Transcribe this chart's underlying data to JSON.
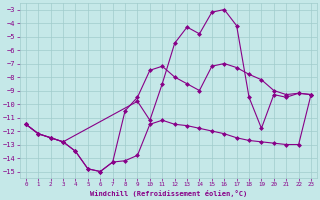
{
  "xlabel": "Windchill (Refroidissement éolien,°C)",
  "bg_color": "#c5e8e8",
  "grid_color": "#a0cccc",
  "line_color": "#880088",
  "xlim": [
    -0.5,
    23.5
  ],
  "ylim": [
    -15.5,
    -2.5
  ],
  "xticks": [
    0,
    1,
    2,
    3,
    4,
    5,
    6,
    7,
    8,
    9,
    10,
    11,
    12,
    13,
    14,
    15,
    16,
    17,
    18,
    19,
    20,
    21,
    22,
    23
  ],
  "yticks": [
    -3,
    -4,
    -5,
    -6,
    -7,
    -8,
    -9,
    -10,
    -11,
    -12,
    -13,
    -14,
    -15
  ],
  "line1_x": [
    0,
    1,
    2,
    3,
    4,
    5,
    6,
    7,
    8,
    9,
    10,
    11,
    12,
    13,
    14,
    15,
    16,
    17,
    18,
    19,
    20,
    21,
    22,
    23
  ],
  "line1_y": [
    -11.5,
    -12.2,
    -12.5,
    -12.8,
    -13.5,
    -14.8,
    -15.0,
    -14.3,
    -14.2,
    -13.8,
    -11.5,
    -11.2,
    -11.5,
    -11.6,
    -11.8,
    -12.0,
    -12.2,
    -12.5,
    -12.7,
    -12.8,
    -12.9,
    -13.0,
    -13.0,
    -9.3
  ],
  "line2_x": [
    0,
    1,
    2,
    3,
    4,
    5,
    6,
    7,
    8,
    9,
    10,
    11,
    12,
    13,
    14,
    15,
    16,
    17,
    18,
    19,
    20,
    21,
    22,
    23
  ],
  "line2_y": [
    -11.5,
    -12.2,
    -12.5,
    -12.8,
    -13.5,
    -14.8,
    -15.0,
    -14.3,
    -10.5,
    -9.5,
    -7.5,
    -7.2,
    -8.0,
    -8.5,
    -9.0,
    -7.2,
    -7.0,
    -7.3,
    -7.8,
    -8.2,
    -9.0,
    -9.3,
    -9.2,
    -9.3
  ],
  "line3_x": [
    0,
    1,
    2,
    3,
    9,
    10,
    11,
    12,
    13,
    14,
    15,
    16,
    17,
    18,
    19,
    20,
    21,
    22,
    23
  ],
  "line3_y": [
    -11.5,
    -12.2,
    -12.5,
    -12.8,
    -9.8,
    -11.2,
    -8.5,
    -5.5,
    -4.3,
    -4.8,
    -3.2,
    -3.0,
    -4.2,
    -9.5,
    -11.8,
    -9.3,
    -9.5,
    -9.2,
    -9.3
  ],
  "markersize": 2.5
}
